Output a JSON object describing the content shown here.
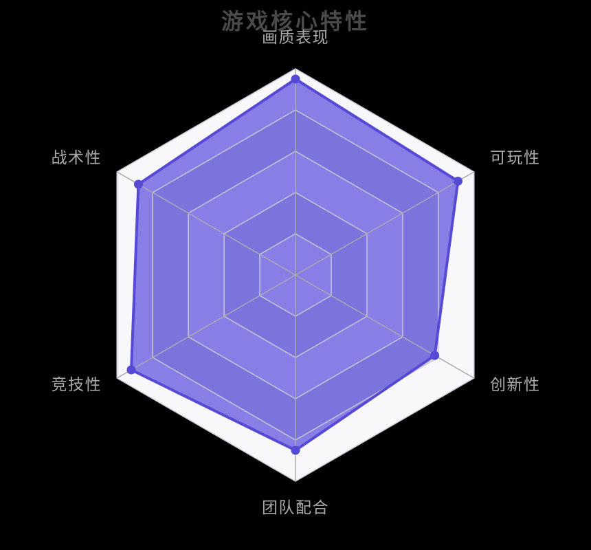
{
  "chart_data": {
    "type": "radar",
    "title": "游戏核心特性",
    "indicators": [
      {
        "name": "画质表现",
        "max": 100
      },
      {
        "name": "可玩性",
        "max": 100
      },
      {
        "name": "创新性",
        "max": 100
      },
      {
        "name": "团队配合",
        "max": 100
      },
      {
        "name": "竞技性",
        "max": 100
      },
      {
        "name": "战术性",
        "max": 100
      }
    ],
    "series": [
      {
        "name": "游戏核心特性",
        "values": [
          95,
          91,
          78,
          85,
          92,
          88
        ]
      }
    ],
    "levels": 5,
    "legend_position": "none",
    "grid": "hexagonal",
    "colors": {
      "background": "#000000",
      "title": "#4a4a4a",
      "axis_label": "#aaaaaa",
      "line": "#5649d6",
      "point": "#5649d6",
      "area_fill": "rgba(70,58,218,0.64)",
      "split_area_light": "#f8f8fb",
      "split_area_dark": "#d8dae3",
      "grid_line": "#c9c9da",
      "axis_line": "#a9a9b2"
    }
  }
}
